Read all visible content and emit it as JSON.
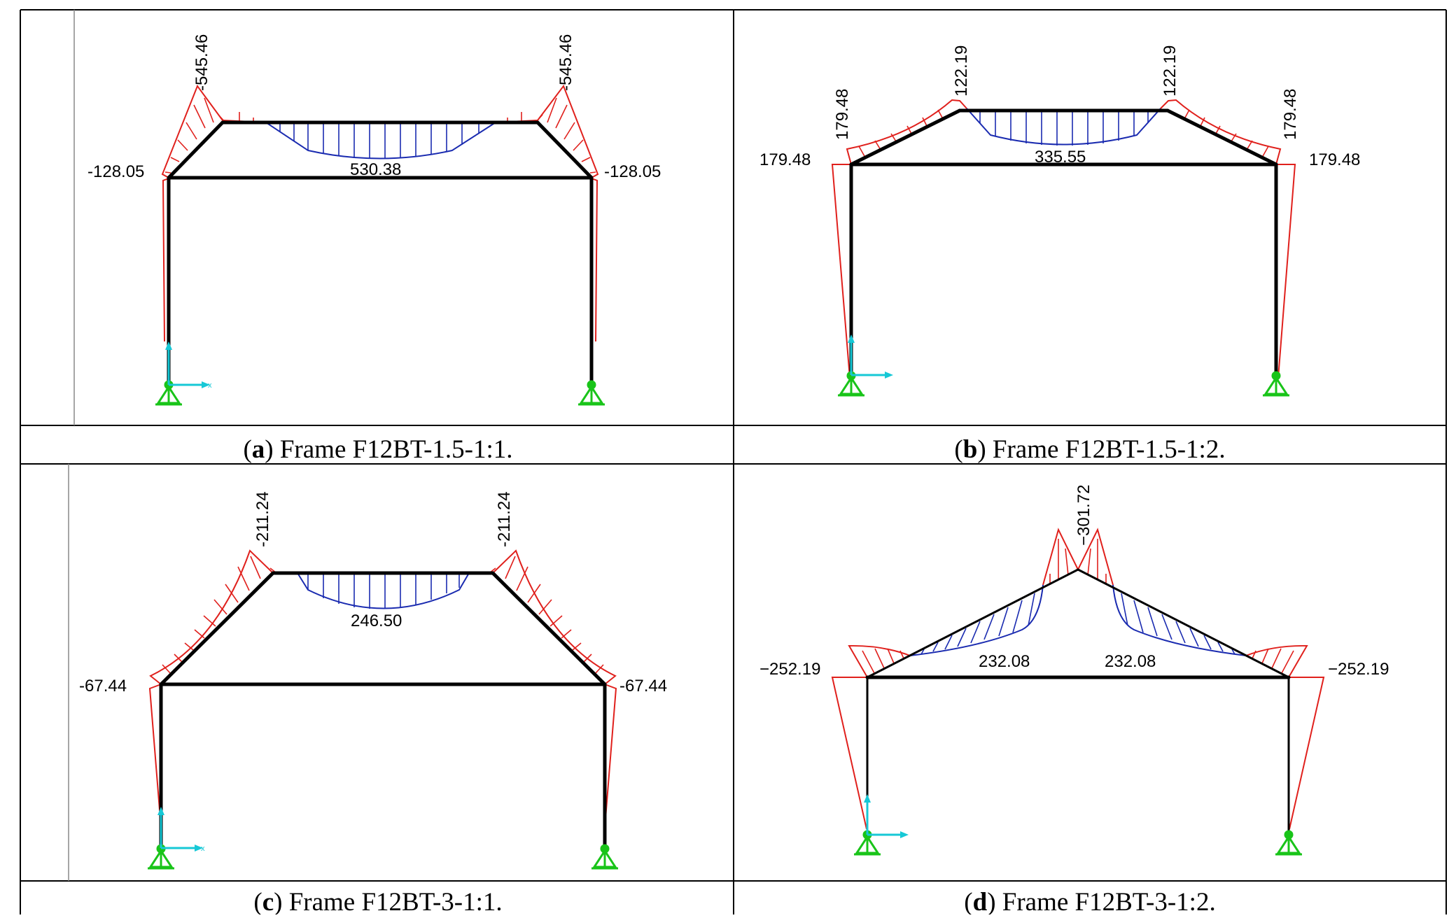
{
  "panels": [
    {
      "id": "a",
      "caption_letter": "a",
      "caption_text": "Frame F12BT-1.5-1:1.",
      "labels": {
        "peak_left": "-545.46",
        "peak_right": "-545.46",
        "eave_left": "-128.05",
        "eave_right": "-128.05",
        "midspan": "530.38"
      }
    },
    {
      "id": "b",
      "caption_letter": "b",
      "caption_text": "Frame F12BT-1.5-1:2.",
      "labels": {
        "peak_left": "122.19",
        "peak_right": "122.19",
        "slope_left": "179.48",
        "slope_right": "179.48",
        "eave_left": "179.48",
        "eave_right": "179.48",
        "midspan": "335.55"
      }
    },
    {
      "id": "c",
      "caption_letter": "c",
      "caption_text": "Frame F12BT-3-1:1.",
      "labels": {
        "peak_left": "-211.24",
        "peak_right": "-211.24",
        "eave_left": "-67.44",
        "eave_right": "-67.44",
        "midspan": "246.50"
      }
    },
    {
      "id": "d",
      "caption_letter": "d",
      "caption_text": "Frame F12BT-3-1:2.",
      "labels": {
        "apex": "−301.72",
        "eave_left": "−252.19",
        "eave_right": "−252.19",
        "span_left": "232.08",
        "span_right": "232.08"
      }
    }
  ],
  "colors": {
    "negative_moment": "#e0201c",
    "positive_moment": "#1a2bb0",
    "frame": "#000000",
    "support": "#19c419",
    "axis": "#16c8d6"
  }
}
